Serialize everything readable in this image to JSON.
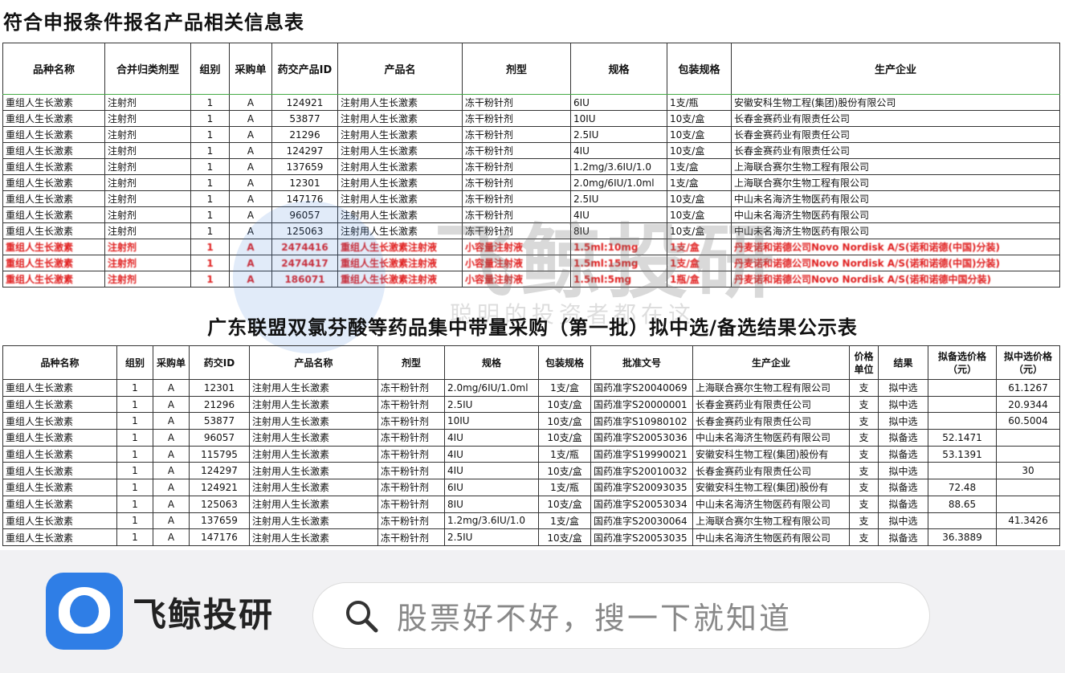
{
  "table1": {
    "title": "符合申报条件报名产品相关信息表",
    "headers": [
      "品种名称",
      "合并归类剂型",
      "组别",
      "采购单",
      "药交产品ID",
      "产品名",
      "剂型",
      "规格",
      "包装规格",
      "生产企业"
    ],
    "rows": [
      [
        "重组人生长激素",
        "注射剂",
        "1",
        "A",
        "124921",
        "注射用人生长激素",
        "冻干粉针剂",
        "6IU",
        "1支/瓶",
        "安徽安科生物工程(集团)股份有限公司"
      ],
      [
        "重组人生长激素",
        "注射剂",
        "1",
        "A",
        "53877",
        "注射用人生长激素",
        "冻干粉针剂",
        "10IU",
        "10支/盒",
        "长春金赛药业有限责任公司"
      ],
      [
        "重组人生长激素",
        "注射剂",
        "1",
        "A",
        "21296",
        "注射用人生长激素",
        "冻干粉针剂",
        "2.5IU",
        "10支/盒",
        "长春金赛药业有限责任公司"
      ],
      [
        "重组人生长激素",
        "注射剂",
        "1",
        "A",
        "124297",
        "注射用人生长激素",
        "冻干粉针剂",
        "4IU",
        "10支/盒",
        "长春金赛药业有限责任公司"
      ],
      [
        "重组人生长激素",
        "注射剂",
        "1",
        "A",
        "137659",
        "注射用人生长激素",
        "冻干粉针剂",
        "1.2mg/3.6IU/1.0",
        "1支/盒",
        "上海联合赛尔生物工程有限公司"
      ],
      [
        "重组人生长激素",
        "注射剂",
        "1",
        "A",
        "12301",
        "注射用人生长激素",
        "冻干粉针剂",
        "2.0mg/6IU/1.0ml",
        "1支/盒",
        "上海联合赛尔生物工程有限公司"
      ],
      [
        "重组人生长激素",
        "注射剂",
        "1",
        "A",
        "147176",
        "注射用人生长激素",
        "冻干粉针剂",
        "2.5IU",
        "10支/盒",
        "中山未名海济生物医药有限公司"
      ],
      [
        "重组人生长激素",
        "注射剂",
        "1",
        "A",
        "96057",
        "注射用人生长激素",
        "冻干粉针剂",
        "4IU",
        "10支/盒",
        "中山未名海济生物医药有限公司"
      ],
      [
        "重组人生长激素",
        "注射剂",
        "1",
        "A",
        "125063",
        "注射用人生长激素",
        "冻干粉针剂",
        "8IU",
        "10支/盒",
        "中山未名海济生物医药有限公司"
      ],
      [
        "重组人生长激素",
        "注射剂",
        "1",
        "A",
        "2474416",
        "重组人生长激素注射液",
        "小容量注射液",
        "1.5ml:10mg",
        "1支/盒",
        "丹麦诺和诺德公司Novo Nordisk A/S(诺和诺德(中国)分装)"
      ],
      [
        "重组人生长激素",
        "注射剂",
        "1",
        "A",
        "2474417",
        "重组人生长激素注射液",
        "小容量注射液",
        "1.5ml:15mg",
        "1支/盒",
        "丹麦诺和诺德公司Novo Nordisk A/S(诺和诺德(中国)分装)"
      ],
      [
        "重组人生长激素",
        "注射剂",
        "1",
        "A",
        "186071",
        "重组人生长激素注射液",
        "小容量注射液",
        "1.5ml:5mg",
        "1瓶/盒",
        "丹麦诺和诺德公司Novo Nordisk A/S(诺和诺德中国分装)"
      ]
    ],
    "red_from": 9
  },
  "table2": {
    "title": "广东联盟双氯芬酸等药品集中带量采购（第一批）拟中选/备选结果公示表",
    "headers": [
      "品种名称",
      "组别",
      "采购单",
      "药交ID",
      "产品名称",
      "剂型",
      "规格",
      "包装规格",
      "批准文号",
      "生产企业",
      "价格单位",
      "结果",
      "拟备选价格（元）",
      "拟中选价格（元）"
    ],
    "rows": [
      [
        "重组人生长激素",
        "1",
        "A",
        "12301",
        "注射用人生长激素",
        "冻干粉针剂",
        "2.0mg/6IU/1.0ml",
        "1支/盒",
        "国药准字S20040069",
        "上海联合赛尔生物工程有限公司",
        "支",
        "拟中选",
        "",
        "61.1267"
      ],
      [
        "重组人生长激素",
        "1",
        "A",
        "21296",
        "注射用人生长激素",
        "冻干粉针剂",
        "2.5IU",
        "10支/盒",
        "国药准字S20000001",
        "长春金赛药业有限责任公司",
        "支",
        "拟中选",
        "",
        "20.9344"
      ],
      [
        "重组人生长激素",
        "1",
        "A",
        "53877",
        "注射用人生长激素",
        "冻干粉针剂",
        "10IU",
        "10支/盒",
        "国药准字S10980102",
        "长春金赛药业有限责任公司",
        "支",
        "拟中选",
        "",
        "60.5004"
      ],
      [
        "重组人生长激素",
        "1",
        "A",
        "96057",
        "注射用人生长激素",
        "冻干粉针剂",
        "4IU",
        "10支/盒",
        "国药准字S20053036",
        "中山未名海济生物医药有限公司",
        "支",
        "拟备选",
        "52.1471",
        ""
      ],
      [
        "重组人生长激素",
        "1",
        "A",
        "115795",
        "注射用人生长激素",
        "冻干粉针剂",
        "4IU",
        "1支/瓶",
        "国药准字S19990021",
        "安徽安科生物工程(集团)股份有",
        "支",
        "拟备选",
        "53.1391",
        ""
      ],
      [
        "重组人生长激素",
        "1",
        "A",
        "124297",
        "注射用人生长激素",
        "冻干粉针剂",
        "4IU",
        "10支/盒",
        "国药准字S20010032",
        "长春金赛药业有限责任公司",
        "支",
        "拟中选",
        "",
        "30"
      ],
      [
        "重组人生长激素",
        "1",
        "A",
        "124921",
        "注射用人生长激素",
        "冻干粉针剂",
        "6IU",
        "1支/瓶",
        "国药准字S20093035",
        "安徽安科生物工程(集团)股份有",
        "支",
        "拟备选",
        "72.48",
        ""
      ],
      [
        "重组人生长激素",
        "1",
        "A",
        "125063",
        "注射用人生长激素",
        "冻干粉针剂",
        "8IU",
        "10支/盒",
        "国药准字S20053034",
        "中山未名海济生物医药有限公司",
        "支",
        "拟备选",
        "88.65",
        ""
      ],
      [
        "重组人生长激素",
        "1",
        "A",
        "137659",
        "注射用人生长激素",
        "冻干粉针剂",
        "1.2mg/3.6IU/1.0",
        "1支/盒",
        "国药准字S20030064",
        "上海联合赛尔生物工程有限公司",
        "支",
        "拟中选",
        "",
        "41.3426"
      ],
      [
        "重组人生长激素",
        "1",
        "A",
        "147176",
        "注射用人生长激素",
        "冻干粉针剂",
        "2.5IU",
        "10支/盒",
        "国药准字S20053035",
        "中山未名海济生物医药有限公司",
        "支",
        "拟备选",
        "36.3889",
        ""
      ]
    ]
  },
  "watermark": {
    "text": "飞鲸投研",
    "sub": "聪明的投资者都在这"
  },
  "banner": {
    "brand": "飞鲸投研",
    "search_placeholder": "股票好不好，搜一下就知道",
    "logo_color": "#2f7ee6"
  }
}
